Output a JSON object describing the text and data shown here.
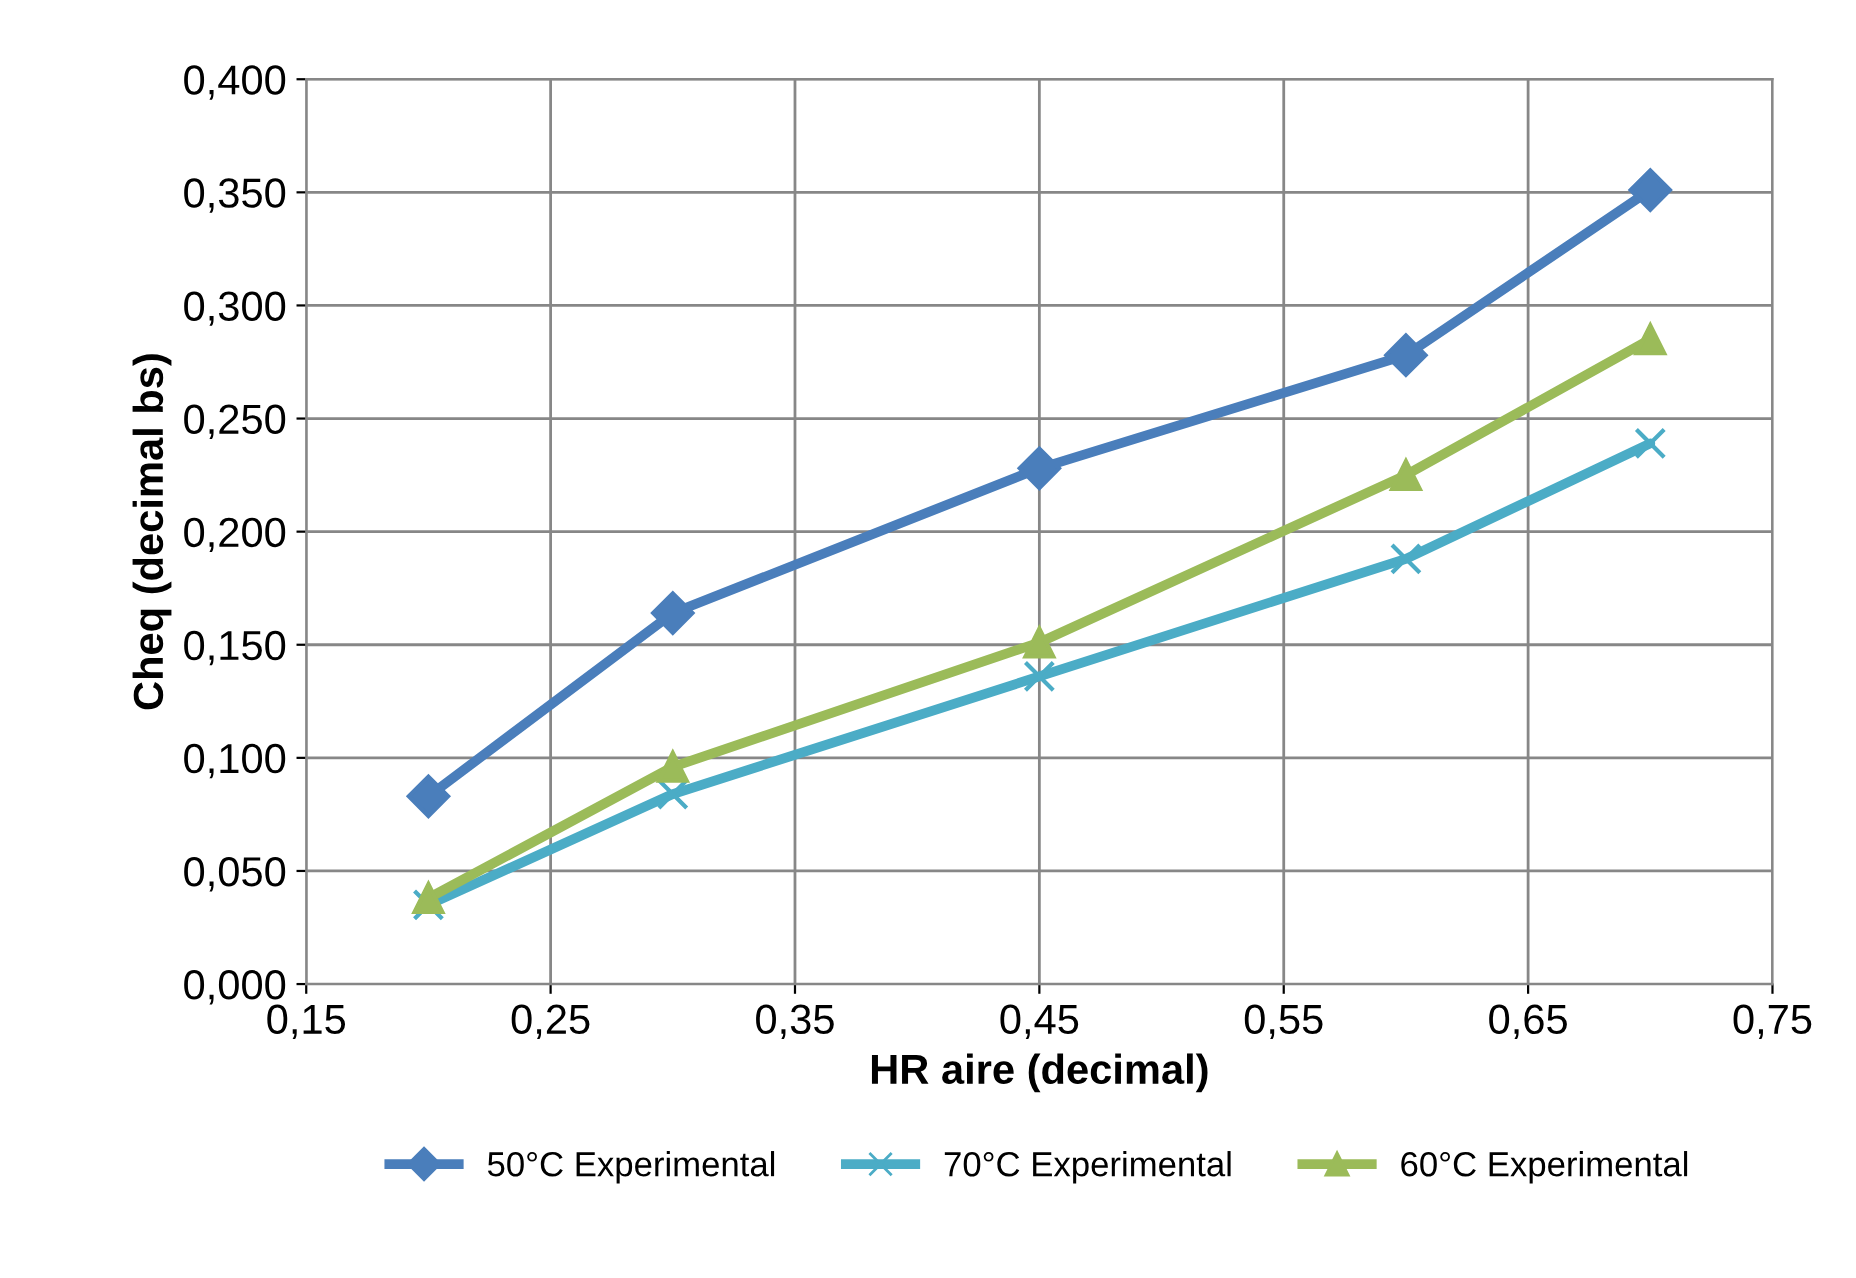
{
  "chart_data": {
    "type": "line",
    "xlabel": "HR aire (decimal)",
    "ylabel": "Cheq (decimal bs)",
    "x": [
      0.2,
      0.3,
      0.45,
      0.6,
      0.7
    ],
    "series": [
      {
        "name": "50°C Experimental",
        "color": "#4a7ebb",
        "marker": "diamond",
        "values": [
          0.083,
          0.164,
          0.228,
          0.278,
          0.351
        ]
      },
      {
        "name": "70°C Experimental",
        "color": "#4bacc6",
        "marker": "cross",
        "values": [
          0.035,
          0.084,
          0.136,
          0.188,
          0.239
        ]
      },
      {
        "name": "60°C Experimental",
        "color": "#9bbb59",
        "marker": "triangle",
        "values": [
          0.038,
          0.096,
          0.151,
          0.225,
          0.285
        ]
      }
    ],
    "xlim": [
      0.15,
      0.75
    ],
    "xticks": [
      {
        "value": 0.15,
        "label": "0,15"
      },
      {
        "value": 0.25,
        "label": "0,25"
      },
      {
        "value": 0.35,
        "label": "0,35"
      },
      {
        "value": 0.45,
        "label": "0,45"
      },
      {
        "value": 0.55,
        "label": "0,55"
      },
      {
        "value": 0.65,
        "label": "0,65"
      },
      {
        "value": 0.75,
        "label": "0,75"
      }
    ],
    "ylim": [
      0,
      0.4
    ],
    "yticks": [
      {
        "value": 0,
        "label": "0,000"
      },
      {
        "value": 0.05,
        "label": "0,050"
      },
      {
        "value": 0.1,
        "label": "0,100"
      },
      {
        "value": 0.15,
        "label": "0,150"
      },
      {
        "value": 0.2,
        "label": "0,200"
      },
      {
        "value": 0.25,
        "label": "0,250"
      },
      {
        "value": 0.3,
        "label": "0,300"
      },
      {
        "value": 0.35,
        "label": "0,350"
      },
      {
        "value": 0.4,
        "label": "0,400"
      }
    ],
    "grid": true,
    "legend": "bottom",
    "line_style": "solid"
  }
}
